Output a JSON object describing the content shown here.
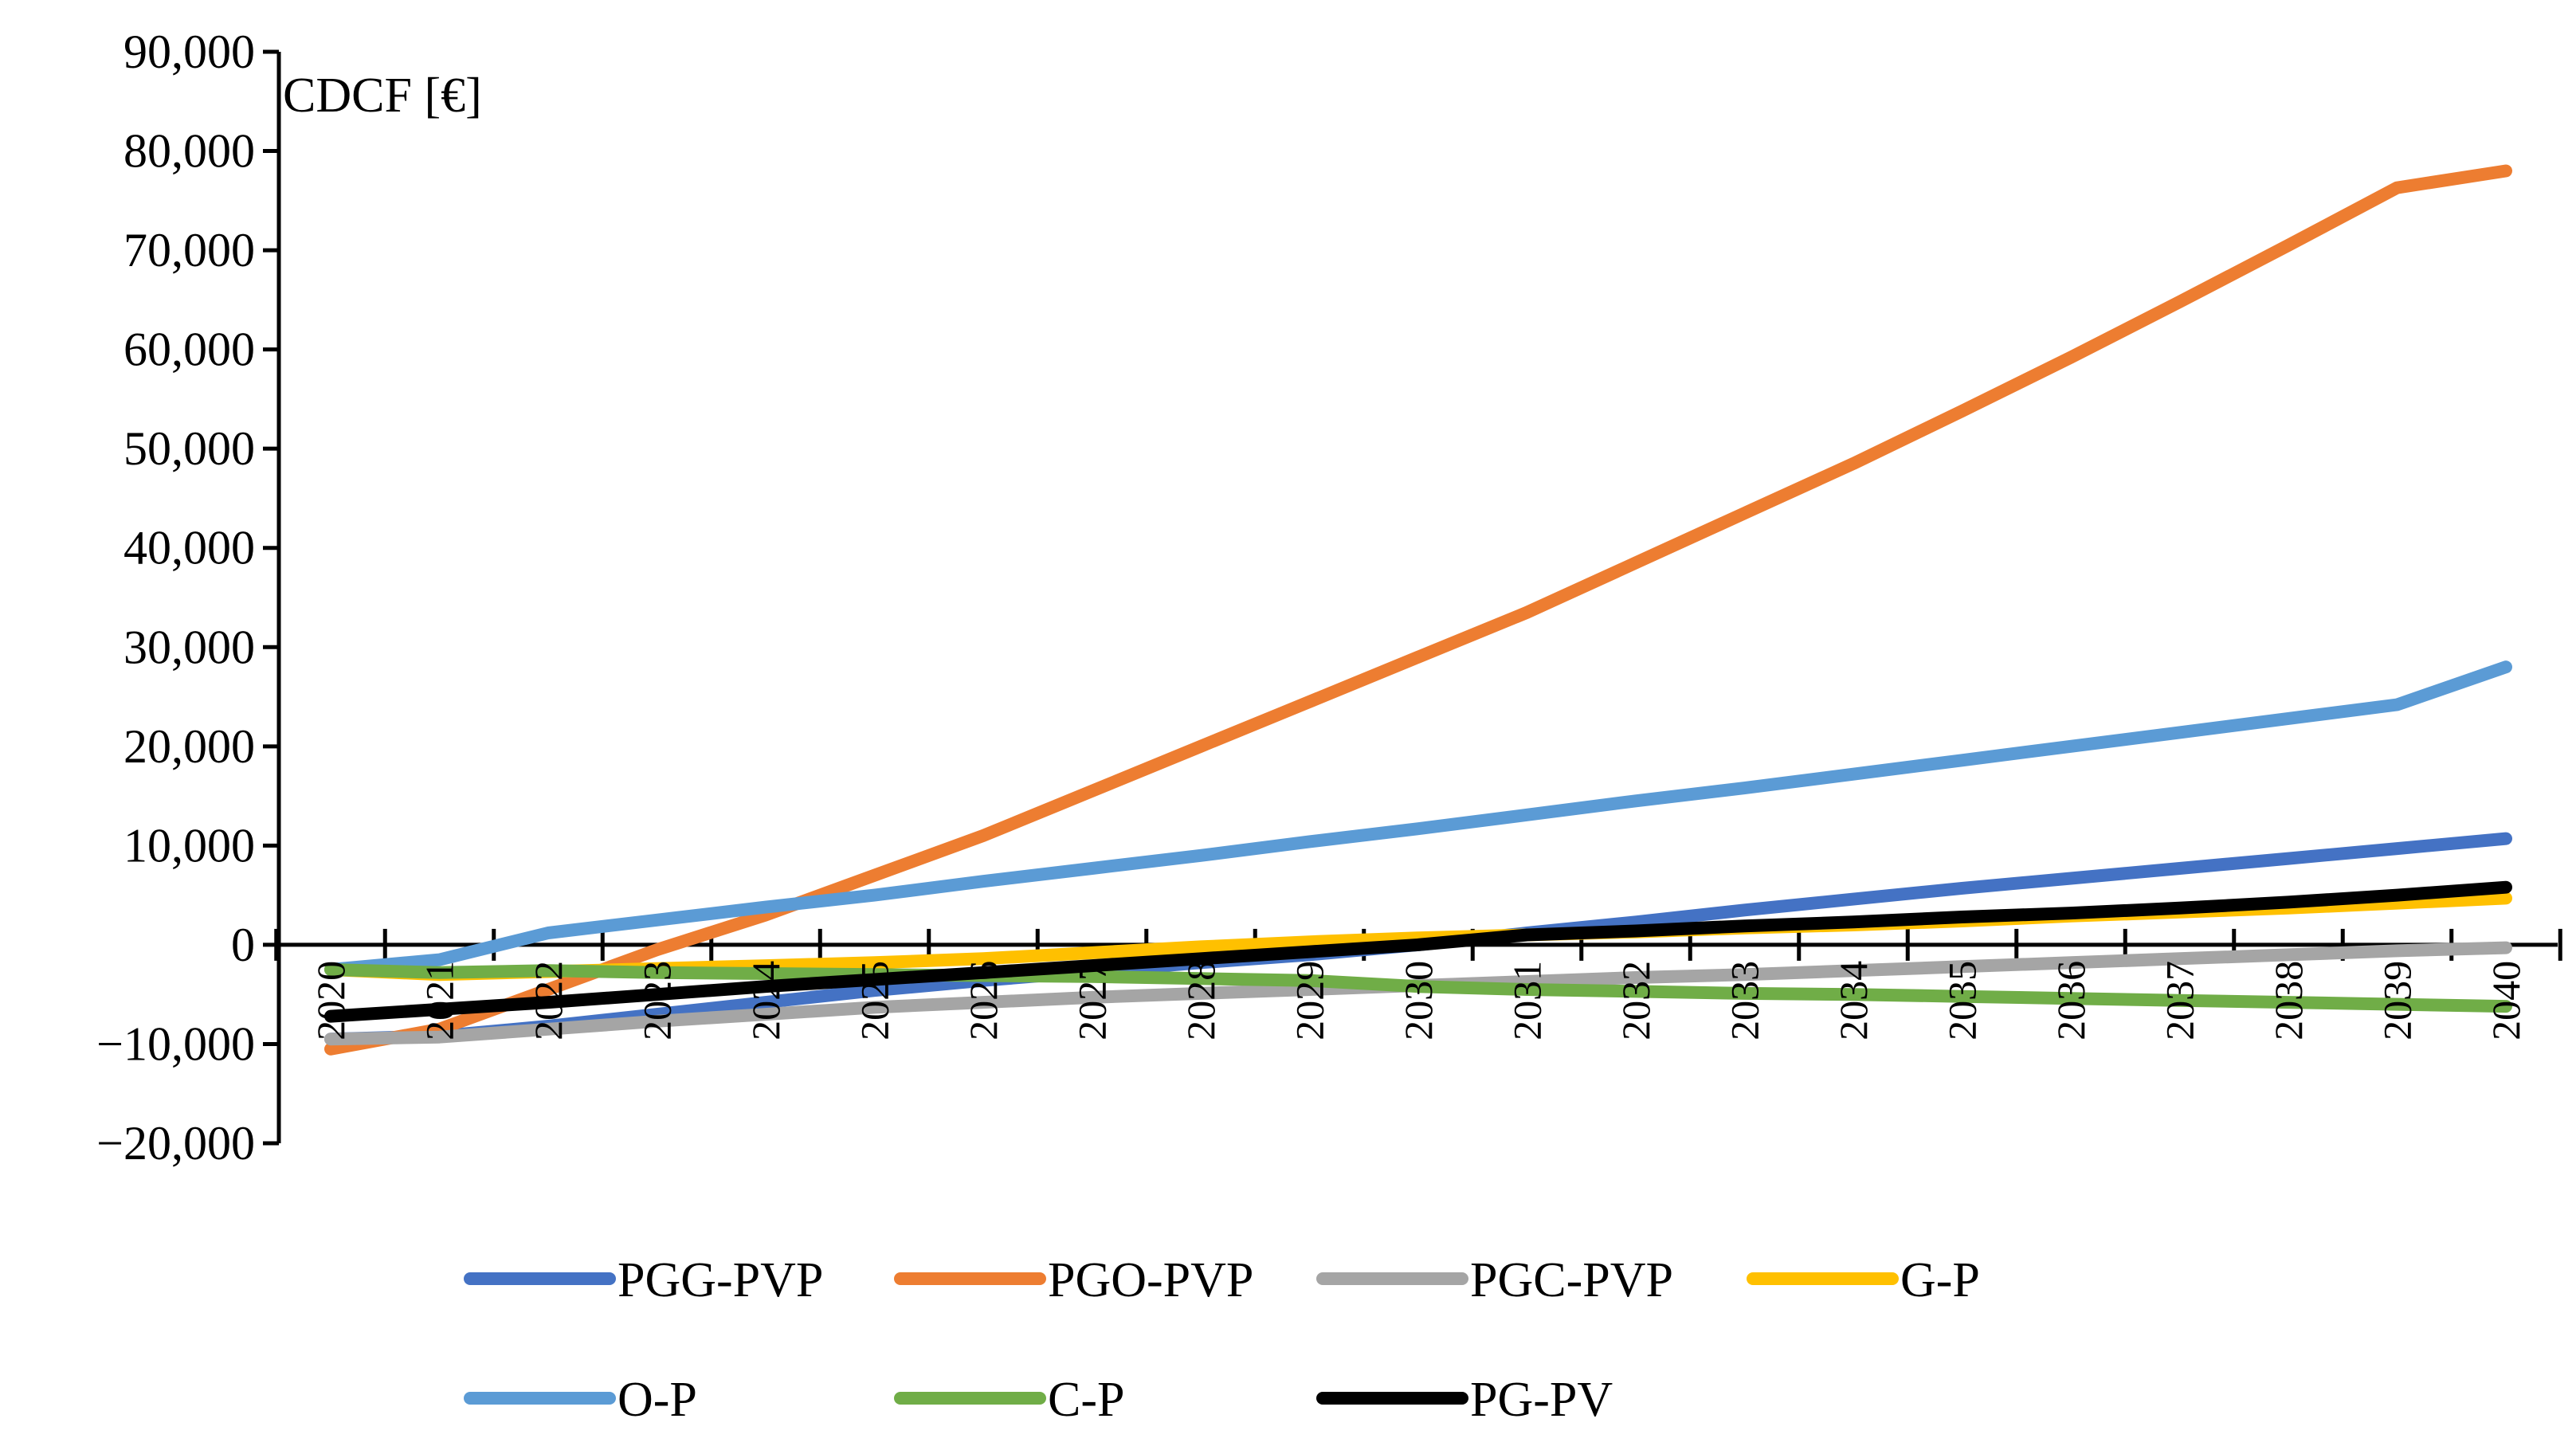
{
  "chart_data": {
    "type": "line",
    "title": "",
    "ylabel": "CDCF [€]",
    "xlabel": "",
    "ylim": [
      -20000,
      90000
    ],
    "yticks": [
      -20000,
      -10000,
      0,
      10000,
      20000,
      30000,
      40000,
      50000,
      60000,
      70000,
      80000,
      90000
    ],
    "ytick_labels": [
      "−20,000",
      "−10,000",
      "0",
      "10,000",
      "20,000",
      "30,000",
      "40,000",
      "50,000",
      "60,000",
      "70,000",
      "80,000",
      "90,000"
    ],
    "x": [
      "2020",
      "2021",
      "2022",
      "2023",
      "2024",
      "2025",
      "2026",
      "2027",
      "2028",
      "2029",
      "2030",
      "2031",
      "2032",
      "2033",
      "2034",
      "2035",
      "2036",
      "2037",
      "2038",
      "2039",
      "2040"
    ],
    "legend_position": "bottom",
    "series": [
      {
        "name": "PGG-PVP",
        "color": "#4472C4",
        "values": [
          -9500,
          -9200,
          -8200,
          -7000,
          -5800,
          -4600,
          -3600,
          -2700,
          -1800,
          -1000,
          0,
          1200,
          2300,
          3500,
          4600,
          5700,
          6700,
          7700,
          8700,
          9700,
          10700
        ]
      },
      {
        "name": "PGO-PVP",
        "color": "#ED7D31",
        "values": [
          -10500,
          -8500,
          -4500,
          -500,
          3000,
          7000,
          11000,
          15500,
          20000,
          24500,
          29000,
          33500,
          38500,
          43500,
          48500,
          53800,
          59200,
          64800,
          70500,
          76300,
          78000
        ]
      },
      {
        "name": "PGC-PVP",
        "color": "#A5A5A5",
        "values": [
          -9500,
          -9300,
          -8500,
          -7700,
          -7000,
          -6300,
          -5800,
          -5300,
          -4900,
          -4500,
          -4100,
          -3700,
          -3300,
          -3000,
          -2600,
          -2200,
          -1800,
          -1400,
          -1000,
          -600,
          -300
        ]
      },
      {
        "name": "G-P",
        "color": "#FFC000",
        "values": [
          -2500,
          -3000,
          -2700,
          -2400,
          -2100,
          -1800,
          -1400,
          -800,
          -200,
          300,
          700,
          1000,
          1300,
          1700,
          2000,
          2400,
          2900,
          3300,
          3700,
          4200,
          4700
        ]
      },
      {
        "name": "O-P",
        "color": "#5B9BD5",
        "values": [
          -2500,
          -1500,
          1200,
          2500,
          3800,
          5000,
          6400,
          7700,
          9000,
          10400,
          11700,
          13100,
          14500,
          15800,
          17200,
          18600,
          20000,
          21400,
          22800,
          24200,
          28000
        ]
      },
      {
        "name": "C-P",
        "color": "#70AD47",
        "values": [
          -2500,
          -2800,
          -2600,
          -2800,
          -2900,
          -3000,
          -3100,
          -3200,
          -3400,
          -3600,
          -4200,
          -4500,
          -4700,
          -4900,
          -5000,
          -5200,
          -5400,
          -5600,
          -5800,
          -6000,
          -6200
        ]
      },
      {
        "name": "PG-PV",
        "color": "#000000",
        "values": [
          -7200,
          -6500,
          -5800,
          -5000,
          -4200,
          -3500,
          -2800,
          -2100,
          -1400,
          -700,
          0,
          1000,
          1400,
          1900,
          2300,
          2800,
          3200,
          3700,
          4300,
          5000,
          5800
        ]
      }
    ]
  }
}
